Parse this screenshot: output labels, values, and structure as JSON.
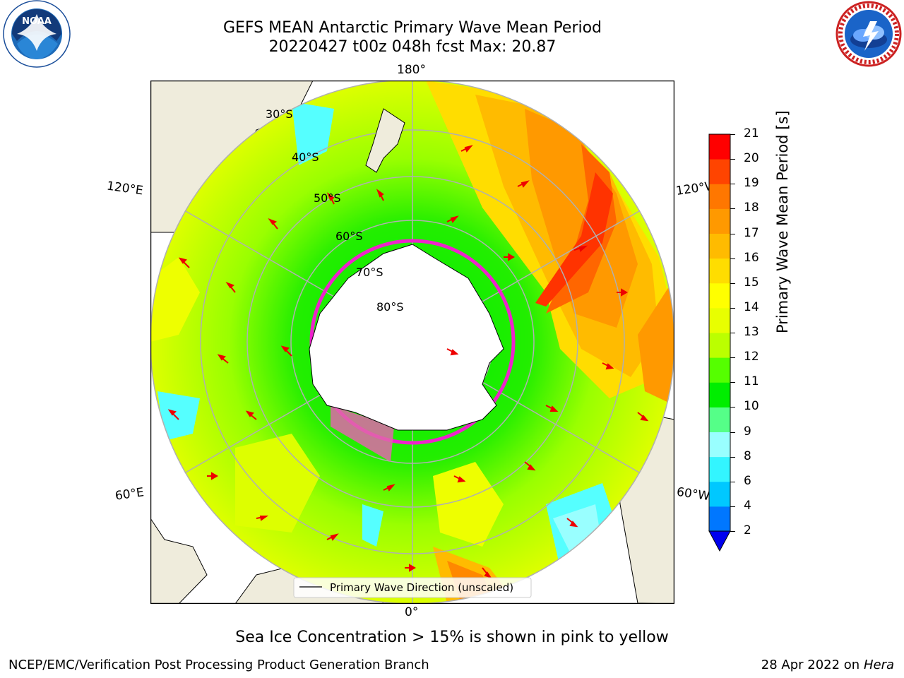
{
  "header": {
    "title_line1": "GEFS MEAN Antarctic Primary Wave Mean Period",
    "title_line2": "20220427 t00z 048h fcst   Max: 20.87"
  },
  "logos": {
    "noaa": {
      "icon": "noaa-logo",
      "text": "NOAA"
    },
    "nws": {
      "icon": "nws-logo"
    }
  },
  "map": {
    "projection": "south-polar-stereographic",
    "longitude_labels": {
      "top": "180°",
      "bottom": "0°",
      "upper_left": "120°E",
      "upper_right": "120°W",
      "lower_left": "60°E",
      "lower_right": "60°W"
    },
    "latitude_labels": [
      "30°S",
      "40°S",
      "50°S",
      "60°S",
      "70°S",
      "80°S"
    ],
    "legend": {
      "label": "Primary Wave Direction (unscaled)"
    },
    "colors": {
      "land": "#efecdc",
      "antarctica": "#ffffff",
      "sea_ice_edge": "#ee22cc"
    }
  },
  "colorbar": {
    "label": "Primary Wave Mean Period [s]",
    "ticks": [
      "2",
      "4",
      "6",
      "8",
      "9",
      "10",
      "11",
      "12",
      "13",
      "14",
      "15",
      "16",
      "17",
      "18",
      "19",
      "20",
      "21"
    ],
    "colors": [
      "#0077ff",
      "#00c8ff",
      "#33f5ff",
      "#99ffff",
      "#55ff88",
      "#00ee00",
      "#55ff00",
      "#bbff00",
      "#e8ff00",
      "#ffff00",
      "#ffdd00",
      "#ffbb00",
      "#ff9900",
      "#ff7700",
      "#ff4400",
      "#ff0000"
    ],
    "under_color": "#0000ee"
  },
  "footer": {
    "note": "Sea Ice Concentration > 15% is shown in pink to yellow",
    "credit": "NCEP/EMC/Verification Post Processing Product Generation Branch",
    "date_prefix": "28 Apr 2022 on ",
    "machine": "Hera"
  }
}
